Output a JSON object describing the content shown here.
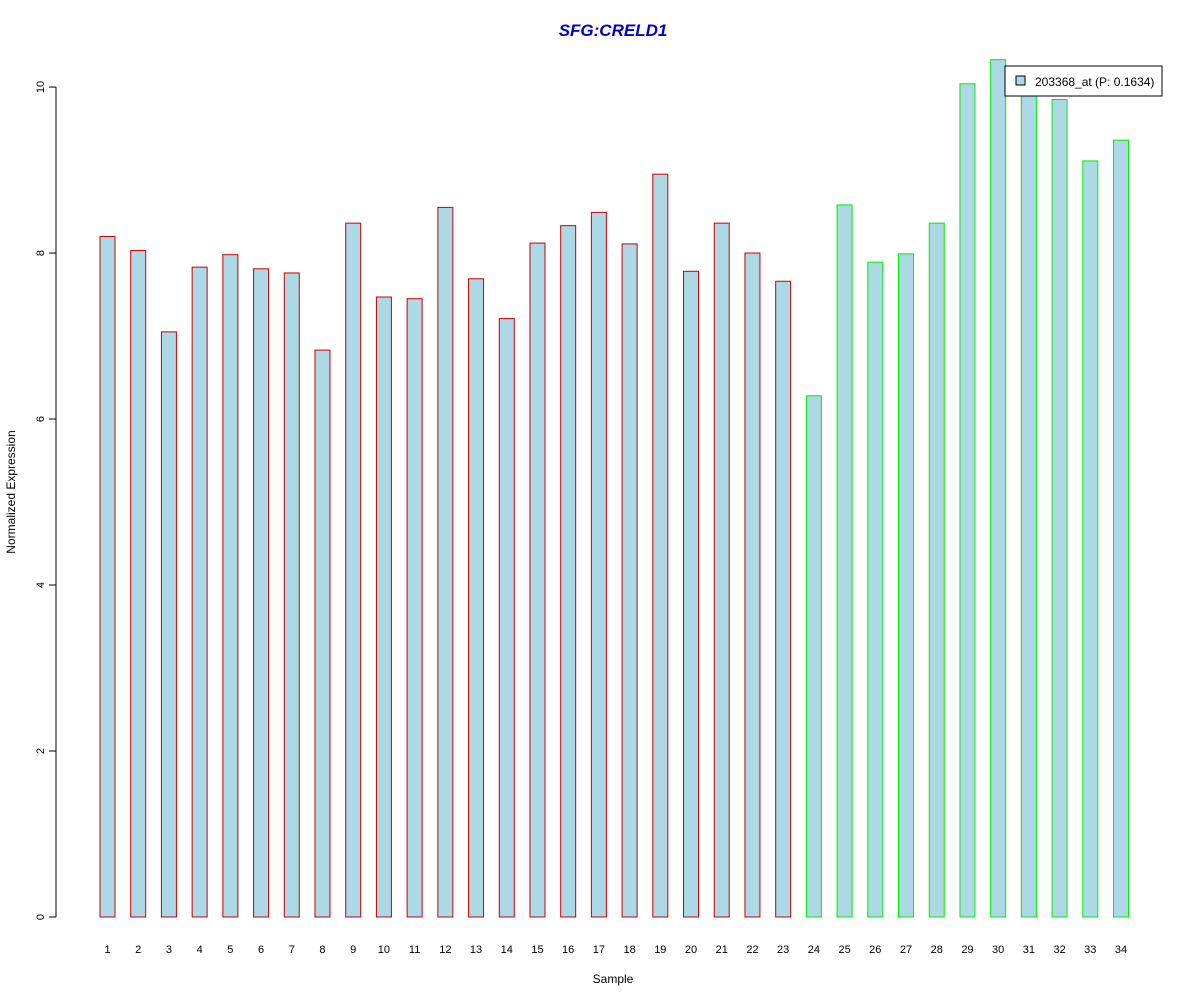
{
  "chart_data": {
    "type": "bar",
    "title": "SFG:CRELD1",
    "xlabel": "Sample",
    "ylabel": "Normalized Expression",
    "ylim": [
      0,
      10.35
    ],
    "yticks": [
      0,
      2,
      4,
      6,
      8,
      10
    ],
    "categories": [
      "1",
      "2",
      "3",
      "4",
      "5",
      "6",
      "7",
      "8",
      "9",
      "10",
      "11",
      "12",
      "13",
      "14",
      "15",
      "16",
      "17",
      "18",
      "19",
      "20",
      "21",
      "22",
      "23",
      "24",
      "25",
      "26",
      "27",
      "28",
      "29",
      "30",
      "31",
      "32",
      "33",
      "34"
    ],
    "series": [
      {
        "name": "203368_at (P: 0.1634)",
        "values": [
          8.2,
          8.03,
          7.05,
          7.83,
          7.98,
          7.81,
          7.76,
          6.83,
          8.36,
          7.47,
          7.45,
          8.55,
          7.69,
          7.21,
          8.12,
          8.33,
          8.49,
          8.11,
          8.95,
          7.78,
          8.36,
          8.0,
          7.66,
          6.28,
          8.58,
          7.89,
          7.99,
          8.36,
          10.04,
          10.33,
          10.24,
          9.85,
          9.11,
          9.36
        ]
      }
    ],
    "group_colors": [
      "#cc0000",
      "#cc0000",
      "#cc0000",
      "#cc0000",
      "#cc0000",
      "#cc0000",
      "#cc0000",
      "#cc0000",
      "#cc0000",
      "#cc0000",
      "#cc0000",
      "#cc0000",
      "#cc0000",
      "#cc0000",
      "#cc0000",
      "#cc0000",
      "#cc0000",
      "#cc0000",
      "#cc0000",
      "#cc0000",
      "#cc0000",
      "#cc0000",
      "#cc0000",
      "#00ee00",
      "#00ee00",
      "#00ee00",
      "#00ee00",
      "#00ee00",
      "#00ee00",
      "#00ee00",
      "#00ee00",
      "#00ee00",
      "#00ee00",
      "#00ee00"
    ],
    "bar_fill": "#add8e6",
    "title_color": "#0000cc",
    "legend": {
      "label": "203368_at (P: 0.1634)",
      "placement": "top-right"
    },
    "grid": false
  }
}
